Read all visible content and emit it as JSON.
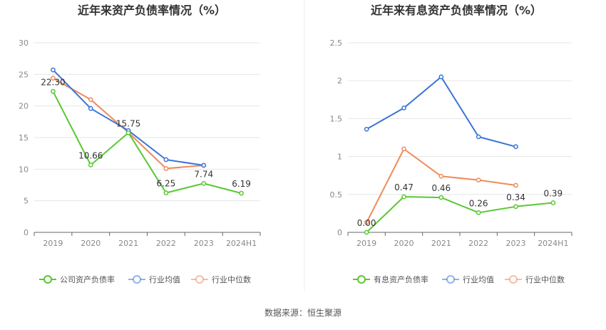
{
  "source_label": "数据来源：恒生聚源",
  "colors": {
    "green": "#5ac832",
    "blue": "#3a74d8",
    "orange": "#ef8a5a",
    "grid": "#e6e6e6",
    "axis": "#666666"
  },
  "chart_data": [
    {
      "type": "line",
      "title": "近年来资产负债率情况（%）",
      "categories": [
        "2019",
        "2020",
        "2021",
        "2022",
        "2023",
        "2024H1"
      ],
      "ylim": [
        0,
        30
      ],
      "yticks": [
        "0",
        "5",
        "10",
        "15",
        "20",
        "25",
        "30"
      ],
      "grid": true,
      "legend_placement": "bottom",
      "series": [
        {
          "name": "公司资产负债率",
          "color": "#5ac832",
          "values": [
            22.3,
            10.66,
            15.75,
            6.25,
            7.74,
            6.19
          ],
          "labels": [
            "22.30",
            "10.66",
            "15.75",
            "6.25",
            "7.74",
            "6.19"
          ]
        },
        {
          "name": "行业均值",
          "color": "#3a74d8",
          "values": [
            25.7,
            19.6,
            16.1,
            11.5,
            10.6,
            null
          ]
        },
        {
          "name": "行业中位数",
          "color": "#ef8a5a",
          "values": [
            24.4,
            21.0,
            15.8,
            10.1,
            10.6,
            null
          ]
        }
      ]
    },
    {
      "type": "line",
      "title": "近年来有息资产负债率情况（%）",
      "categories": [
        "2019",
        "2020",
        "2021",
        "2022",
        "2023",
        "2024H1"
      ],
      "ylim": [
        0,
        2.5
      ],
      "yticks": [
        "0",
        "0.5",
        "1",
        "1.5",
        "2",
        "2.5"
      ],
      "grid": true,
      "legend_placement": "bottom",
      "series": [
        {
          "name": "有息资产负债率",
          "color": "#5ac832",
          "values": [
            0.0,
            0.47,
            0.46,
            0.26,
            0.34,
            0.39
          ],
          "labels": [
            "0.00",
            "0.47",
            "0.46",
            "0.26",
            "0.34",
            "0.39"
          ]
        },
        {
          "name": "行业均值",
          "color": "#3a74d8",
          "values": [
            1.36,
            1.64,
            2.05,
            1.26,
            1.13,
            null
          ]
        },
        {
          "name": "行业中位数",
          "color": "#ef8a5a",
          "values": [
            0.13,
            1.1,
            0.74,
            0.69,
            0.62,
            null
          ]
        }
      ]
    }
  ]
}
